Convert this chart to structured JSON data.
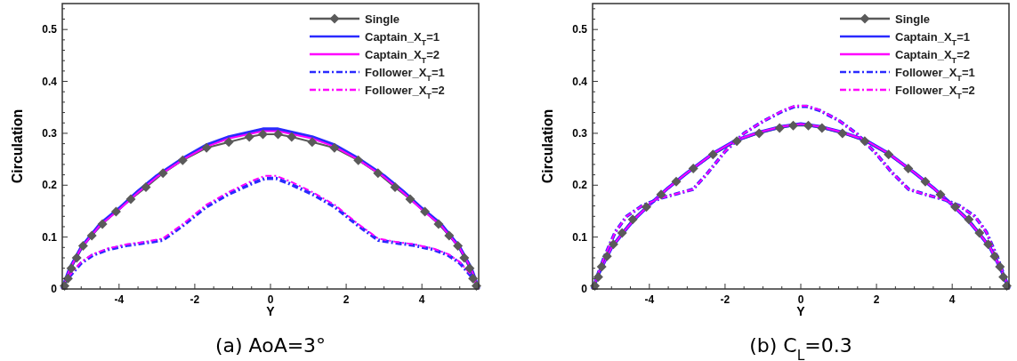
{
  "chart_data": [
    {
      "type": "line",
      "title": "(a)  AoA=3°",
      "xlabel": "Y",
      "ylabel": "Circulation",
      "legend": "top right",
      "grid": false,
      "xlim": [
        -5.5,
        5.5
      ],
      "ylim": [
        0,
        0.55
      ],
      "xticks": [
        {
          "value": -5,
          "label": null
        },
        {
          "value": -4.5,
          "label": null
        },
        -4,
        {
          "value": -3.5,
          "label": null
        },
        {
          "value": -3,
          "label": null
        },
        {
          "value": -2.5,
          "label": null
        },
        -2,
        {
          "value": -1.5,
          "label": null
        },
        {
          "value": -1,
          "label": null
        },
        {
          "value": -0.5,
          "label": null
        },
        0,
        {
          "value": 0.5,
          "label": null
        },
        {
          "value": 1,
          "label": null
        },
        {
          "value": 1.5,
          "label": null
        },
        2,
        {
          "value": 2.5,
          "label": null
        },
        {
          "value": 3,
          "label": null
        },
        {
          "value": 3.5,
          "label": null
        },
        4,
        {
          "value": 4.5,
          "label": null
        },
        {
          "value": 5,
          "label": null
        }
      ],
      "yticks": [
        0,
        {
          "value": 0.02,
          "label": null
        },
        {
          "value": 0.04,
          "label": null
        },
        {
          "value": 0.06,
          "label": null
        },
        {
          "value": 0.08,
          "label": null
        },
        0.1,
        {
          "value": 0.12,
          "label": null
        },
        {
          "value": 0.14,
          "label": null
        },
        {
          "value": 0.16,
          "label": null
        },
        {
          "value": 0.18,
          "label": null
        },
        0.2,
        {
          "value": 0.22,
          "label": null
        },
        {
          "value": 0.24,
          "label": null
        },
        {
          "value": 0.26,
          "label": null
        },
        {
          "value": 0.28,
          "label": null
        },
        0.3,
        {
          "value": 0.32,
          "label": null
        },
        {
          "value": 0.34,
          "label": null
        },
        {
          "value": 0.36,
          "label": null
        },
        {
          "value": 0.38,
          "label": null
        },
        0.4,
        {
          "value": 0.42,
          "label": null
        },
        {
          "value": 0.44,
          "label": null
        },
        {
          "value": 0.46,
          "label": null
        },
        {
          "value": 0.48,
          "label": null
        },
        0.5,
        {
          "value": 0.52,
          "label": null
        },
        {
          "value": 0.54,
          "label": null
        }
      ],
      "series": [
        {
          "name": "Single",
          "color": "#5a5a5a",
          "line_style": "solid",
          "marker": "diamond",
          "x": [
            -5.44,
            -5.35,
            -5.26,
            -5.12,
            -4.95,
            -4.72,
            -4.44,
            -4.08,
            -3.69,
            -3.29,
            -2.84,
            -2.32,
            -1.69,
            -1.1,
            -0.56,
            -0.2,
            0.2,
            0.56,
            1.1,
            1.69,
            2.32,
            2.84,
            3.29,
            3.69,
            4.08,
            4.44,
            4.72,
            4.95,
            5.12,
            5.26,
            5.35,
            5.44
          ],
          "values": [
            0.006,
            0.02,
            0.04,
            0.06,
            0.083,
            0.103,
            0.125,
            0.149,
            0.173,
            0.196,
            0.223,
            0.248,
            0.272,
            0.283,
            0.293,
            0.298,
            0.298,
            0.293,
            0.283,
            0.272,
            0.248,
            0.223,
            0.196,
            0.173,
            0.149,
            0.125,
            0.103,
            0.083,
            0.06,
            0.04,
            0.02,
            0.006
          ]
        },
        {
          "name": "Captain_X$_{T}$=1",
          "color": "#2a2aff",
          "line_style": "solid",
          "marker": "none",
          "x": [
            -5.5,
            -5.3,
            -5.0,
            -4.5,
            -4.0,
            -3.5,
            -3.0,
            -2.3,
            -1.7,
            -1.1,
            -0.2,
            0.2,
            1.1,
            1.7,
            2.3,
            3.0,
            3.5,
            4.0,
            4.5,
            5.0,
            5.3,
            5.5
          ],
          "values": [
            0,
            0.04,
            0.08,
            0.125,
            0.155,
            0.188,
            0.218,
            0.252,
            0.277,
            0.293,
            0.308,
            0.308,
            0.293,
            0.277,
            0.252,
            0.218,
            0.188,
            0.155,
            0.125,
            0.08,
            0.04,
            0
          ]
        },
        {
          "name": "Captain_X$_{T}$=2",
          "color": "#ff00ff",
          "line_style": "solid",
          "marker": "none",
          "x": [
            -5.5,
            -5.3,
            -5.0,
            -4.5,
            -4.0,
            -3.5,
            -3.0,
            -2.3,
            -1.7,
            -1.1,
            -0.2,
            0.2,
            1.1,
            1.7,
            2.3,
            3.0,
            3.5,
            4.0,
            4.5,
            5.0,
            5.3,
            5.5
          ],
          "values": [
            0,
            0.039,
            0.079,
            0.123,
            0.153,
            0.186,
            0.216,
            0.25,
            0.274,
            0.29,
            0.304,
            0.304,
            0.29,
            0.274,
            0.25,
            0.216,
            0.186,
            0.153,
            0.123,
            0.079,
            0.039,
            0
          ]
        },
        {
          "name": "Follower_X$_{T}$=1",
          "color": "#2a2aff",
          "line_style": "dashdot",
          "marker": "none",
          "x": [
            -5.5,
            -5.3,
            -5.0,
            -4.7,
            -4.3,
            -3.8,
            -3.3,
            -2.85,
            -2.3,
            -1.7,
            -1.1,
            -0.5,
            -0.15,
            0.15,
            0.5,
            1.1,
            1.7,
            2.3,
            2.85,
            3.3,
            3.8,
            4.3,
            4.7,
            5.0,
            5.3,
            5.5
          ],
          "values": [
            0,
            0.025,
            0.05,
            0.065,
            0.076,
            0.084,
            0.089,
            0.094,
            0.123,
            0.158,
            0.183,
            0.203,
            0.213,
            0.213,
            0.203,
            0.183,
            0.158,
            0.123,
            0.094,
            0.089,
            0.084,
            0.076,
            0.065,
            0.05,
            0.025,
            0
          ]
        },
        {
          "name": "Follower_X$_{T}$=2",
          "color": "#ff00ff",
          "line_style": "dashdot",
          "marker": "none",
          "x": [
            -5.5,
            -5.3,
            -5.0,
            -4.7,
            -4.3,
            -3.8,
            -3.3,
            -2.85,
            -2.3,
            -1.7,
            -1.1,
            -0.5,
            -0.15,
            0.15,
            0.5,
            1.1,
            1.7,
            2.3,
            2.85,
            3.3,
            3.8,
            4.3,
            4.7,
            5.0,
            5.3,
            5.5
          ],
          "values": [
            0,
            0.027,
            0.052,
            0.067,
            0.078,
            0.086,
            0.091,
            0.097,
            0.126,
            0.162,
            0.187,
            0.208,
            0.218,
            0.218,
            0.208,
            0.187,
            0.162,
            0.126,
            0.097,
            0.091,
            0.086,
            0.078,
            0.067,
            0.052,
            0.027,
            0
          ]
        }
      ]
    },
    {
      "type": "line",
      "title": "(b)  C$_{L}$=0.3",
      "xlabel": "Y",
      "ylabel": "Circulation",
      "legend": "top right",
      "grid": false,
      "xlim": [
        -5.5,
        5.5
      ],
      "ylim": [
        0,
        0.55
      ],
      "xticks": [
        {
          "value": -5,
          "label": null
        },
        {
          "value": -4.5,
          "label": null
        },
        -4,
        {
          "value": -3.5,
          "label": null
        },
        {
          "value": -3,
          "label": null
        },
        {
          "value": -2.5,
          "label": null
        },
        -2,
        {
          "value": -1.5,
          "label": null
        },
        {
          "value": -1,
          "label": null
        },
        {
          "value": -0.5,
          "label": null
        },
        0,
        {
          "value": 0.5,
          "label": null
        },
        {
          "value": 1,
          "label": null
        },
        {
          "value": 1.5,
          "label": null
        },
        2,
        {
          "value": 2.5,
          "label": null
        },
        {
          "value": 3,
          "label": null
        },
        {
          "value": 3.5,
          "label": null
        },
        4,
        {
          "value": 4.5,
          "label": null
        },
        {
          "value": 5,
          "label": null
        }
      ],
      "yticks": [
        0,
        {
          "value": 0.02,
          "label": null
        },
        {
          "value": 0.04,
          "label": null
        },
        {
          "value": 0.06,
          "label": null
        },
        {
          "value": 0.08,
          "label": null
        },
        0.1,
        {
          "value": 0.12,
          "label": null
        },
        {
          "value": 0.14,
          "label": null
        },
        {
          "value": 0.16,
          "label": null
        },
        {
          "value": 0.18,
          "label": null
        },
        0.2,
        {
          "value": 0.22,
          "label": null
        },
        {
          "value": 0.24,
          "label": null
        },
        {
          "value": 0.26,
          "label": null
        },
        {
          "value": 0.28,
          "label": null
        },
        0.3,
        {
          "value": 0.32,
          "label": null
        },
        {
          "value": 0.34,
          "label": null
        },
        {
          "value": 0.36,
          "label": null
        },
        {
          "value": 0.38,
          "label": null
        },
        0.4,
        {
          "value": 0.42,
          "label": null
        },
        {
          "value": 0.44,
          "label": null
        },
        {
          "value": 0.46,
          "label": null
        },
        {
          "value": 0.48,
          "label": null
        },
        0.5,
        {
          "value": 0.52,
          "label": null
        },
        {
          "value": 0.54,
          "label": null
        }
      ],
      "series": [
        {
          "name": "Single",
          "color": "#5a5a5a",
          "line_style": "solid",
          "marker": "diamond",
          "x": [
            -5.44,
            -5.35,
            -5.26,
            -5.12,
            -4.95,
            -4.72,
            -4.44,
            -4.08,
            -3.69,
            -3.29,
            -2.84,
            -2.32,
            -1.69,
            -1.1,
            -0.56,
            -0.2,
            0.2,
            0.56,
            1.1,
            1.69,
            2.32,
            2.84,
            3.29,
            3.69,
            4.08,
            4.44,
            4.72,
            4.95,
            5.12,
            5.26,
            5.35,
            5.44
          ],
          "values": [
            0.006,
            0.023,
            0.043,
            0.063,
            0.086,
            0.108,
            0.134,
            0.158,
            0.182,
            0.207,
            0.232,
            0.259,
            0.285,
            0.3,
            0.31,
            0.315,
            0.315,
            0.31,
            0.3,
            0.285,
            0.259,
            0.232,
            0.207,
            0.182,
            0.158,
            0.134,
            0.108,
            0.086,
            0.063,
            0.043,
            0.023,
            0.006
          ]
        },
        {
          "name": "Captain_X$_{T}$=1",
          "color": "#2a2aff",
          "line_style": "solid",
          "marker": "none",
          "x": [
            -5.5,
            -5.3,
            -5.0,
            -4.7,
            -4.4,
            -4.0,
            -3.5,
            -3.0,
            -2.3,
            -1.7,
            -1.1,
            -0.5,
            0,
            0.5,
            1.1,
            1.7,
            2.3,
            3.0,
            3.5,
            4.0,
            4.4,
            4.7,
            5.0,
            5.3,
            5.5
          ],
          "values": [
            0,
            0.036,
            0.08,
            0.108,
            0.134,
            0.162,
            0.195,
            0.224,
            0.262,
            0.287,
            0.302,
            0.313,
            0.318,
            0.313,
            0.302,
            0.287,
            0.262,
            0.224,
            0.195,
            0.162,
            0.134,
            0.108,
            0.08,
            0.036,
            0
          ]
        },
        {
          "name": "Captain_X$_{T}$=2",
          "color": "#ff00ff",
          "line_style": "solid",
          "marker": "none",
          "x": [
            -5.5,
            -5.3,
            -5.0,
            -4.7,
            -4.4,
            -4.0,
            -3.5,
            -3.0,
            -2.3,
            -1.7,
            -1.1,
            -0.5,
            0,
            0.5,
            1.1,
            1.7,
            2.3,
            3.0,
            3.5,
            4.0,
            4.4,
            4.7,
            5.0,
            5.3,
            5.5
          ],
          "values": [
            0,
            0.036,
            0.08,
            0.108,
            0.134,
            0.162,
            0.195,
            0.224,
            0.262,
            0.287,
            0.302,
            0.313,
            0.318,
            0.313,
            0.302,
            0.287,
            0.262,
            0.224,
            0.195,
            0.162,
            0.134,
            0.108,
            0.08,
            0.036,
            0
          ]
        },
        {
          "name": "Follower_X$_{T}$=1",
          "color": "#2a2aff",
          "line_style": "dashdot",
          "marker": "none",
          "x": [
            -5.5,
            -5.2,
            -4.9,
            -4.6,
            -4.2,
            -3.7,
            -3.2,
            -2.85,
            -2.5,
            -2.0,
            -1.5,
            -1.0,
            -0.5,
            -0.15,
            0.15,
            0.5,
            1.0,
            1.5,
            2.0,
            2.4,
            2.85,
            3.3,
            3.8,
            4.2,
            4.6,
            4.9,
            5.2,
            5.5
          ],
          "values": [
            0,
            0.06,
            0.11,
            0.14,
            0.16,
            0.175,
            0.185,
            0.192,
            0.22,
            0.265,
            0.3,
            0.323,
            0.342,
            0.352,
            0.352,
            0.344,
            0.325,
            0.298,
            0.26,
            0.225,
            0.192,
            0.182,
            0.172,
            0.16,
            0.14,
            0.11,
            0.06,
            0
          ]
        },
        {
          "name": "Follower_X$_{T}$=2",
          "color": "#ff00ff",
          "line_style": "dashdot",
          "marker": "none",
          "x": [
            -5.5,
            -5.2,
            -4.9,
            -4.6,
            -4.2,
            -3.7,
            -3.2,
            -2.85,
            -2.5,
            -2.0,
            -1.5,
            -1.0,
            -0.5,
            -0.15,
            0.15,
            0.5,
            1.0,
            1.5,
            2.0,
            2.4,
            2.85,
            3.3,
            3.8,
            4.2,
            4.6,
            4.9,
            5.2,
            5.5
          ],
          "values": [
            0,
            0.06,
            0.11,
            0.14,
            0.16,
            0.175,
            0.185,
            0.192,
            0.22,
            0.265,
            0.3,
            0.323,
            0.343,
            0.353,
            0.353,
            0.345,
            0.325,
            0.298,
            0.26,
            0.225,
            0.192,
            0.182,
            0.172,
            0.16,
            0.14,
            0.11,
            0.06,
            0
          ]
        }
      ]
    }
  ]
}
